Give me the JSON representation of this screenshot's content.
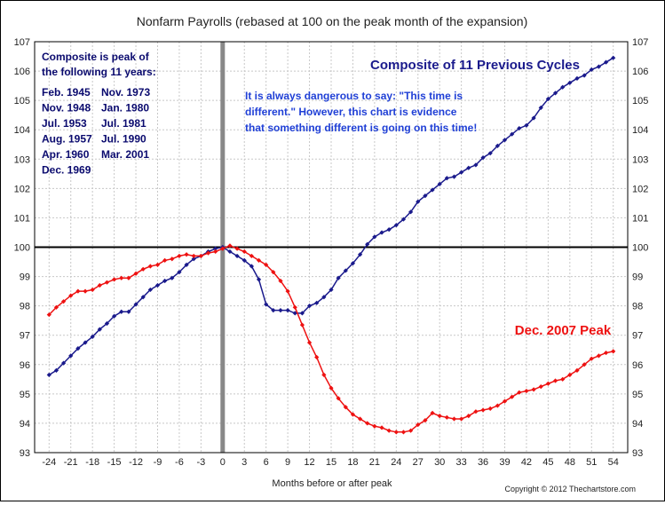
{
  "chart_data": {
    "type": "line",
    "title": "Nonfarm Payrolls (rebased at 100 on the peak month of the expansion)",
    "xlabel": "Months before or after peak",
    "ylabel": "",
    "xlim": [
      -26,
      56
    ],
    "ylim": [
      93,
      107
    ],
    "x_ticks": [
      -24,
      -21,
      -18,
      -15,
      -12,
      -9,
      -6,
      -3,
      0,
      3,
      6,
      9,
      12,
      15,
      18,
      21,
      24,
      27,
      30,
      33,
      36,
      39,
      42,
      45,
      48,
      51,
      54
    ],
    "y_ticks": [
      93,
      94,
      95,
      96,
      97,
      98,
      99,
      100,
      101,
      102,
      103,
      104,
      105,
      106,
      107
    ],
    "grid": true,
    "reference_lines": {
      "y": 100,
      "x": 0
    },
    "copyright": "Copyright © 2012 Thechartstore.com",
    "series": [
      {
        "name": "Composite of 11 Previous Cycles",
        "color": "#1a1a8c",
        "x_start": -24,
        "values": [
          95.65,
          95.8,
          96.05,
          96.3,
          96.55,
          96.75,
          96.95,
          97.2,
          97.4,
          97.65,
          97.8,
          97.8,
          98.05,
          98.3,
          98.55,
          98.7,
          98.85,
          98.95,
          99.15,
          99.4,
          99.6,
          99.7,
          99.85,
          99.95,
          100.0,
          99.85,
          99.7,
          99.55,
          99.35,
          98.9,
          98.05,
          97.85,
          97.85,
          97.85,
          97.75,
          97.75,
          98.0,
          98.1,
          98.3,
          98.55,
          98.95,
          99.2,
          99.45,
          99.75,
          100.1,
          100.35,
          100.5,
          100.6,
          100.75,
          100.95,
          101.2,
          101.55,
          101.75,
          101.95,
          102.15,
          102.35,
          102.4,
          102.55,
          102.7,
          102.8,
          103.05,
          103.2,
          103.45,
          103.65,
          103.85,
          104.05,
          104.15,
          104.4,
          104.75,
          105.05,
          105.25,
          105.45,
          105.6,
          105.75,
          105.85,
          106.05,
          106.15,
          106.3,
          106.45
        ]
      },
      {
        "name": "Dec. 2007 Peak",
        "color": "#ee1111",
        "x_start": -24,
        "values": [
          97.7,
          97.95,
          98.15,
          98.35,
          98.5,
          98.5,
          98.55,
          98.7,
          98.8,
          98.9,
          98.95,
          98.95,
          99.1,
          99.25,
          99.35,
          99.4,
          99.55,
          99.6,
          99.7,
          99.75,
          99.7,
          99.7,
          99.8,
          99.85,
          99.95,
          100.05,
          99.95,
          99.85,
          99.7,
          99.55,
          99.4,
          99.15,
          98.85,
          98.5,
          97.95,
          97.35,
          96.75,
          96.25,
          95.65,
          95.2,
          94.85,
          94.55,
          94.3,
          94.15,
          94.0,
          93.9,
          93.85,
          93.75,
          93.7,
          93.7,
          93.75,
          93.95,
          94.1,
          94.35,
          94.25,
          94.2,
          94.15,
          94.15,
          94.25,
          94.4,
          94.45,
          94.5,
          94.6,
          94.75,
          94.9,
          95.05,
          95.1,
          95.15,
          95.25,
          95.35,
          95.45,
          95.5,
          95.65,
          95.8,
          96.0,
          96.2,
          96.3,
          96.4,
          96.45
        ]
      }
    ],
    "annotations": {
      "composite_label": "Composite of 11 Previous Cycles",
      "dec2007_label": "Dec. 2007 Peak",
      "note_lines": [
        "It is always dangerous to say:  \"This time is",
        "different.\"  However, this chart is evidence",
        "that something different is going on this time!"
      ],
      "peaks_heading": [
        "Composite is peak of",
        "the following 11 years:"
      ],
      "peaks_col1": [
        "Feb. 1945",
        "Nov. 1948",
        "Jul. 1953",
        "Aug. 1957",
        "Apr. 1960",
        "Dec. 1969"
      ],
      "peaks_col2": [
        "Nov. 1973",
        "Jan. 1980",
        "Jul. 1981",
        "Jul. 1990",
        "Mar. 2001"
      ]
    }
  }
}
